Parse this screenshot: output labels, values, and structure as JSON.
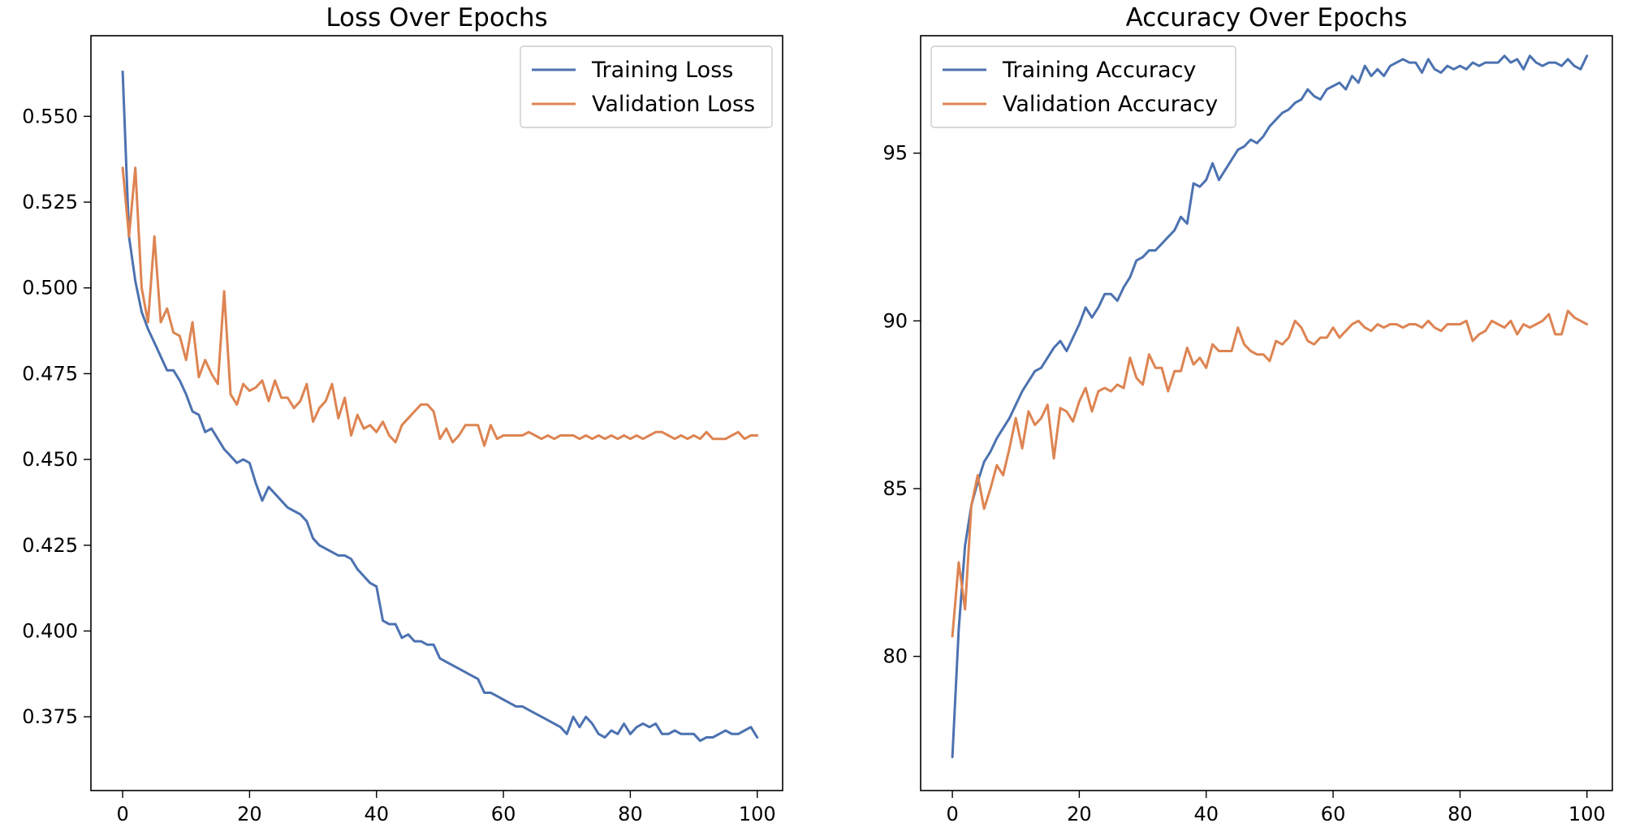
{
  "colors": {
    "training": "#4c72b0",
    "validation": "#dd8452"
  },
  "chart_data": [
    {
      "type": "line",
      "title": "Loss Over Epochs",
      "xlabel": "",
      "ylabel": "",
      "xlim": [
        -5,
        104
      ],
      "ylim": [
        0.3535,
        0.5735
      ],
      "xticks": [
        0,
        20,
        40,
        60,
        80,
        100
      ],
      "yticks": [
        0.375,
        0.4,
        0.425,
        0.45,
        0.475,
        0.5,
        0.525,
        0.55
      ],
      "ytick_labels": [
        "0.375",
        "0.400",
        "0.425",
        "0.450",
        "0.475",
        "0.500",
        "0.525",
        "0.550"
      ],
      "legend": "top-right",
      "grid": false,
      "series": [
        {
          "name": "Training Loss",
          "color": "#4c72b0",
          "values": [
            0.563,
            0.515,
            0.502,
            0.493,
            0.488,
            0.484,
            0.48,
            0.476,
            0.476,
            0.473,
            0.469,
            0.464,
            0.463,
            0.458,
            0.459,
            0.456,
            0.453,
            0.451,
            0.449,
            0.45,
            0.449,
            0.443,
            0.438,
            0.442,
            0.44,
            0.438,
            0.436,
            0.435,
            0.434,
            0.432,
            0.427,
            0.425,
            0.424,
            0.423,
            0.422,
            0.422,
            0.421,
            0.418,
            0.416,
            0.414,
            0.413,
            0.403,
            0.402,
            0.402,
            0.398,
            0.399,
            0.397,
            0.397,
            0.396,
            0.396,
            0.392,
            0.391,
            0.39,
            0.389,
            0.388,
            0.387,
            0.386,
            0.382,
            0.382,
            0.381,
            0.38,
            0.379,
            0.378,
            0.378,
            0.377,
            0.376,
            0.375,
            0.374,
            0.373,
            0.372,
            0.37,
            0.375,
            0.372,
            0.375,
            0.373,
            0.37,
            0.369,
            0.371,
            0.37,
            0.373,
            0.37,
            0.372,
            0.373,
            0.372,
            0.373,
            0.37,
            0.37,
            0.371,
            0.37,
            0.37,
            0.37,
            0.368,
            0.369,
            0.369,
            0.37,
            0.371,
            0.37,
            0.37,
            0.371,
            0.372,
            0.369
          ]
        },
        {
          "name": "Validation Loss",
          "color": "#dd8452",
          "values": [
            0.535,
            0.515,
            0.535,
            0.5,
            0.49,
            0.515,
            0.49,
            0.494,
            0.487,
            0.486,
            0.479,
            0.49,
            0.474,
            0.479,
            0.475,
            0.472,
            0.499,
            0.469,
            0.466,
            0.472,
            0.47,
            0.471,
            0.473,
            0.467,
            0.473,
            0.468,
            0.468,
            0.465,
            0.467,
            0.472,
            0.461,
            0.465,
            0.467,
            0.472,
            0.462,
            0.468,
            0.457,
            0.463,
            0.459,
            0.46,
            0.458,
            0.461,
            0.457,
            0.455,
            0.46,
            0.462,
            0.464,
            0.466,
            0.466,
            0.464,
            0.456,
            0.459,
            0.455,
            0.457,
            0.46,
            0.46,
            0.46,
            0.454,
            0.46,
            0.456,
            0.457,
            0.457,
            0.457,
            0.457,
            0.458,
            0.457,
            0.456,
            0.457,
            0.456,
            0.457,
            0.457,
            0.457,
            0.456,
            0.457,
            0.456,
            0.457,
            0.456,
            0.457,
            0.456,
            0.457,
            0.456,
            0.457,
            0.456,
            0.457,
            0.458,
            0.458,
            0.457,
            0.456,
            0.457,
            0.456,
            0.457,
            0.456,
            0.458,
            0.456,
            0.456,
            0.456,
            0.457,
            0.458,
            0.456,
            0.457,
            0.457
          ]
        }
      ]
    },
    {
      "type": "line",
      "title": "Accuracy Over Epochs",
      "xlabel": "",
      "ylabel": "",
      "xlim": [
        -5,
        104
      ],
      "ylim": [
        76.0,
        98.5
      ],
      "xticks": [
        0,
        20,
        40,
        60,
        80,
        100
      ],
      "yticks": [
        80,
        85,
        90,
        95
      ],
      "ytick_labels": [
        "80",
        "85",
        "90",
        "95"
      ],
      "legend": "top-left",
      "grid": false,
      "series": [
        {
          "name": "Training Accuracy",
          "color": "#4c72b0",
          "values": [
            77.0,
            80.8,
            83.3,
            84.5,
            85.2,
            85.8,
            86.1,
            86.5,
            86.8,
            87.1,
            87.5,
            87.9,
            88.2,
            88.5,
            88.6,
            88.9,
            89.2,
            89.4,
            89.1,
            89.5,
            89.9,
            90.4,
            90.1,
            90.4,
            90.8,
            90.8,
            90.6,
            91.0,
            91.3,
            91.8,
            91.9,
            92.1,
            92.1,
            92.3,
            92.5,
            92.7,
            93.1,
            92.9,
            94.1,
            94.0,
            94.2,
            94.7,
            94.2,
            94.5,
            94.8,
            95.1,
            95.2,
            95.4,
            95.3,
            95.5,
            95.8,
            96.0,
            96.2,
            96.3,
            96.5,
            96.6,
            96.9,
            96.7,
            96.6,
            96.9,
            97.0,
            97.1,
            96.9,
            97.3,
            97.1,
            97.6,
            97.3,
            97.5,
            97.3,
            97.6,
            97.7,
            97.8,
            97.7,
            97.7,
            97.4,
            97.8,
            97.5,
            97.4,
            97.6,
            97.5,
            97.6,
            97.5,
            97.7,
            97.6,
            97.7,
            97.7,
            97.7,
            97.9,
            97.7,
            97.8,
            97.5,
            97.9,
            97.7,
            97.6,
            97.7,
            97.7,
            97.6,
            97.8,
            97.6,
            97.5,
            97.9
          ]
        },
        {
          "name": "Validation Accuracy",
          "color": "#dd8452",
          "values": [
            80.6,
            82.8,
            81.4,
            84.5,
            85.4,
            84.4,
            85.0,
            85.7,
            85.4,
            86.2,
            87.1,
            86.2,
            87.3,
            86.9,
            87.1,
            87.5,
            85.9,
            87.4,
            87.3,
            87.0,
            87.6,
            88.0,
            87.3,
            87.9,
            88.0,
            87.9,
            88.1,
            88.0,
            88.9,
            88.3,
            88.1,
            89.0,
            88.6,
            88.6,
            87.9,
            88.5,
            88.5,
            89.2,
            88.7,
            88.9,
            88.6,
            89.3,
            89.1,
            89.1,
            89.1,
            89.8,
            89.3,
            89.1,
            89.0,
            89.0,
            88.8,
            89.4,
            89.3,
            89.5,
            90.0,
            89.8,
            89.4,
            89.3,
            89.5,
            89.5,
            89.8,
            89.5,
            89.7,
            89.9,
            90.0,
            89.8,
            89.7,
            89.9,
            89.8,
            89.9,
            89.9,
            89.8,
            89.9,
            89.9,
            89.8,
            90.0,
            89.8,
            89.7,
            89.9,
            89.9,
            89.9,
            90.0,
            89.4,
            89.6,
            89.7,
            90.0,
            89.9,
            89.8,
            90.0,
            89.6,
            89.9,
            89.8,
            89.9,
            90.0,
            90.2,
            89.6,
            89.6,
            90.3,
            90.1,
            90.0,
            89.9
          ]
        }
      ]
    }
  ]
}
